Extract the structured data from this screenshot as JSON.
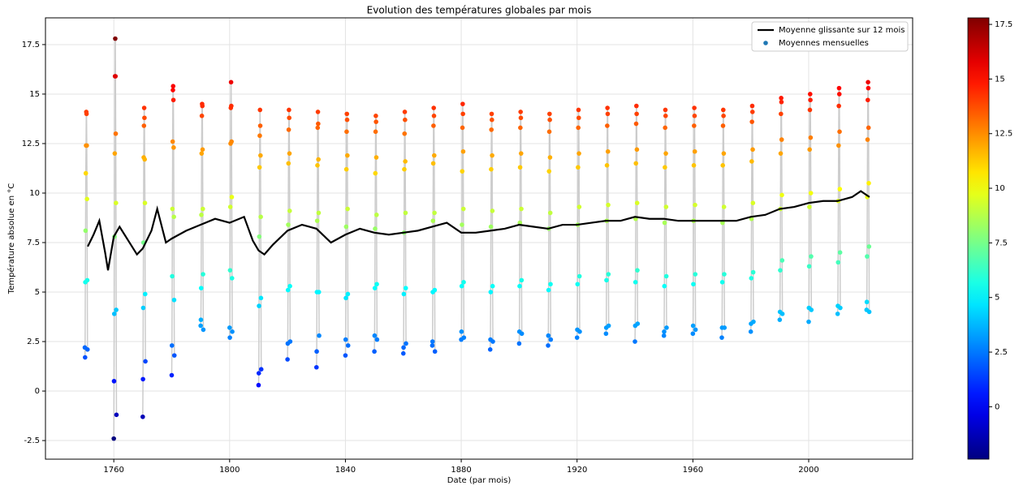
{
  "chart_data": {
    "type": "scatter",
    "title": "Evolution des températures globales par mois",
    "x_label": "Date (par mois)",
    "y_label": "Température absolue en °C",
    "xlim": [
      1736.4,
      2035.9
    ],
    "ylim": [
      -3.44,
      18.85
    ],
    "xticks": [
      1760,
      1800,
      1840,
      1880,
      1920,
      1960,
      2000
    ],
    "yticks": [
      -2.5,
      0.0,
      2.5,
      5.0,
      7.5,
      10.0,
      12.5,
      15.0,
      17.5
    ],
    "grid": true,
    "legend": "upper right",
    "colormap": "jet",
    "clim": [
      -2.4,
      17.8
    ],
    "cticks": [
      0.0,
      2.5,
      5.0,
      7.5,
      10.0,
      12.5,
      15.0,
      17.5
    ],
    "series": [
      {
        "name": "Moyenne glissante sur 12 mois",
        "type": "line",
        "color": "#000000",
        "x": [
          1751,
          1753,
          1755,
          1757,
          1758,
          1760,
          1762,
          1765,
          1768,
          1770,
          1773,
          1775,
          1778,
          1780,
          1785,
          1790,
          1795,
          1800,
          1805,
          1808,
          1810,
          1812,
          1815,
          1820,
          1825,
          1830,
          1835,
          1840,
          1845,
          1850,
          1855,
          1860,
          1865,
          1870,
          1875,
          1880,
          1885,
          1890,
          1895,
          1900,
          1905,
          1910,
          1915,
          1920,
          1925,
          1930,
          1935,
          1940,
          1945,
          1950,
          1955,
          1960,
          1965,
          1970,
          1975,
          1980,
          1985,
          1990,
          1995,
          2000,
          2005,
          2010,
          2015,
          2018,
          2021
        ],
        "values": [
          7.3,
          7.9,
          8.6,
          7.0,
          6.1,
          7.8,
          8.3,
          7.6,
          6.9,
          7.2,
          8.1,
          9.2,
          7.5,
          7.7,
          8.1,
          8.4,
          8.7,
          8.5,
          8.8,
          7.6,
          7.1,
          6.9,
          7.4,
          8.1,
          8.4,
          8.2,
          7.5,
          7.9,
          8.2,
          8.0,
          7.9,
          8.0,
          8.1,
          8.3,
          8.5,
          8.0,
          8.0,
          8.1,
          8.2,
          8.4,
          8.3,
          8.2,
          8.4,
          8.4,
          8.5,
          8.6,
          8.6,
          8.8,
          8.7,
          8.7,
          8.6,
          8.6,
          8.6,
          8.6,
          8.6,
          8.8,
          8.9,
          9.2,
          9.3,
          9.5,
          9.6,
          9.6,
          9.8,
          10.1,
          9.8
        ]
      },
      {
        "name": "Moyennes mensuelles",
        "type": "scatter",
        "color": "#1f77b4",
        "line_color": "#cccccc",
        "x": [
          1750,
          1760,
          1770,
          1780,
          1790,
          1800,
          1810,
          1820,
          1830,
          1840,
          1850,
          1860,
          1870,
          1880,
          1890,
          1900,
          1910,
          1920,
          1930,
          1940,
          1950,
          1960,
          1970,
          1980,
          1990,
          2000,
          2010,
          2020
        ],
        "values": [
          [
            2.2,
            1.7,
            5.5,
            8.1,
            11.0,
            12.4,
            14.1,
            14.0,
            12.4,
            9.7,
            5.6,
            2.1
          ],
          [
            -2.4,
            0.5,
            3.9,
            7.8,
            12.0,
            15.9,
            17.8,
            15.9,
            13.0,
            9.5,
            4.1,
            -1.2
          ],
          [
            -1.3,
            0.6,
            4.2,
            7.5,
            11.8,
            13.4,
            14.3,
            13.8,
            11.7,
            9.5,
            4.9,
            1.5
          ],
          [
            0.8,
            2.3,
            5.8,
            9.2,
            12.6,
            15.2,
            15.4,
            14.7,
            12.3,
            8.8,
            4.6,
            1.8
          ],
          [
            3.3,
            3.6,
            5.2,
            8.9,
            12.0,
            13.9,
            14.5,
            14.4,
            12.2,
            9.2,
            5.9,
            3.1
          ],
          [
            3.2,
            2.7,
            6.1,
            9.3,
            12.5,
            14.3,
            15.6,
            14.4,
            12.6,
            9.8,
            5.7,
            3.0
          ],
          [
            0.3,
            0.9,
            4.3,
            7.8,
            11.3,
            12.9,
            14.2,
            13.4,
            11.9,
            8.8,
            4.7,
            1.1
          ],
          [
            1.6,
            2.4,
            5.1,
            8.4,
            11.5,
            13.2,
            14.2,
            13.8,
            12.0,
            9.1,
            5.3,
            2.5
          ],
          [
            1.2,
            2.0,
            5.0,
            8.6,
            11.4,
            13.3,
            14.1,
            13.5,
            11.7,
            9.0,
            5.0,
            2.8
          ],
          [
            1.8,
            2.6,
            4.7,
            8.3,
            11.2,
            13.1,
            14.0,
            13.7,
            11.9,
            9.2,
            4.9,
            2.3
          ],
          [
            2.0,
            2.8,
            5.2,
            8.2,
            11.0,
            13.1,
            13.9,
            13.6,
            11.8,
            8.9,
            5.4,
            2.6
          ],
          [
            1.9,
            2.2,
            4.9,
            8.0,
            11.2,
            13.0,
            14.1,
            13.7,
            11.6,
            9.0,
            5.2,
            2.4
          ],
          [
            2.3,
            2.5,
            5.0,
            8.6,
            11.5,
            13.4,
            14.3,
            13.9,
            11.9,
            9.0,
            5.1,
            2.0
          ],
          [
            2.6,
            3.0,
            5.3,
            8.4,
            11.1,
            13.3,
            14.5,
            14.0,
            12.1,
            9.2,
            5.5,
            2.7
          ],
          [
            2.1,
            2.6,
            5.0,
            8.3,
            11.2,
            13.2,
            14.0,
            13.7,
            11.9,
            9.1,
            5.3,
            2.5
          ],
          [
            2.4,
            3.0,
            5.3,
            8.5,
            11.3,
            13.3,
            14.1,
            13.8,
            12.0,
            9.2,
            5.6,
            2.9
          ],
          [
            2.3,
            2.8,
            5.1,
            8.2,
            11.1,
            13.1,
            14.0,
            13.7,
            11.8,
            9.0,
            5.4,
            2.6
          ],
          [
            2.7,
            3.1,
            5.4,
            8.4,
            11.3,
            13.3,
            14.2,
            13.8,
            12.0,
            9.3,
            5.8,
            3.0
          ],
          [
            2.9,
            3.2,
            5.6,
            8.6,
            11.4,
            13.4,
            14.3,
            14.0,
            12.1,
            9.4,
            5.9,
            3.3
          ],
          [
            2.5,
            3.3,
            5.5,
            8.7,
            11.5,
            13.5,
            14.4,
            14.0,
            12.2,
            9.5,
            6.1,
            3.4
          ],
          [
            2.8,
            3.0,
            5.3,
            8.5,
            11.3,
            13.3,
            14.2,
            13.9,
            12.0,
            9.3,
            5.8,
            3.2
          ],
          [
            2.9,
            3.3,
            5.4,
            8.6,
            11.4,
            13.4,
            14.3,
            13.9,
            12.1,
            9.4,
            5.9,
            3.1
          ],
          [
            2.7,
            3.2,
            5.5,
            8.5,
            11.4,
            13.4,
            14.2,
            13.9,
            12.0,
            9.3,
            5.9,
            3.2
          ],
          [
            3.0,
            3.4,
            5.7,
            8.7,
            11.6,
            13.6,
            14.4,
            14.1,
            12.2,
            9.5,
            6.0,
            3.5
          ],
          [
            3.6,
            4.0,
            6.1,
            9.2,
            12.0,
            14.0,
            14.8,
            14.6,
            12.7,
            9.9,
            6.6,
            3.9
          ],
          [
            3.5,
            4.2,
            6.3,
            9.3,
            12.2,
            14.2,
            15.0,
            14.7,
            12.8,
            10.0,
            6.8,
            4.1
          ],
          [
            3.9,
            4.3,
            6.5,
            9.6,
            12.4,
            14.4,
            15.3,
            15.0,
            13.1,
            10.2,
            7.0,
            4.2
          ],
          [
            4.1,
            4.5,
            6.8,
            9.8,
            12.7,
            14.7,
            15.6,
            15.3,
            13.3,
            10.5,
            7.3,
            4.0
          ]
        ]
      }
    ]
  }
}
